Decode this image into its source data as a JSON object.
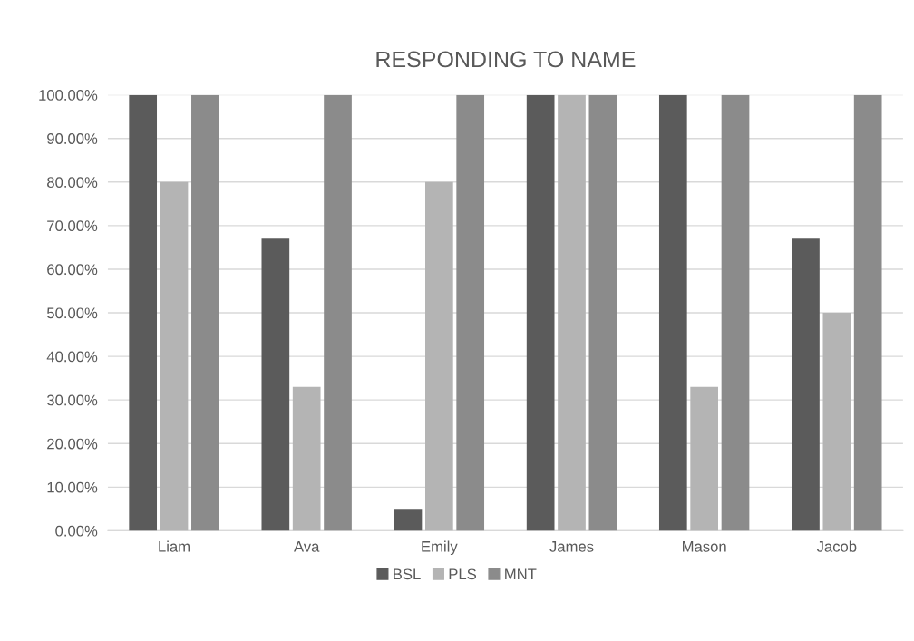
{
  "chart_data": {
    "type": "bar",
    "title": "RESPONDING TO NAME",
    "categories": [
      "Liam",
      "Ava",
      "Emily",
      "James",
      "Mason",
      "Jacob"
    ],
    "series": [
      {
        "name": "BSL",
        "color": "#5b5b5b",
        "values": [
          100,
          67,
          5,
          100,
          100,
          67
        ]
      },
      {
        "name": "PLS",
        "color": "#b4b4b4",
        "values": [
          80,
          33,
          80,
          100,
          33,
          50
        ]
      },
      {
        "name": "MNT",
        "color": "#8b8b8b",
        "values": [
          100,
          100,
          100,
          100,
          100,
          100
        ]
      }
    ],
    "ylim": [
      0,
      100
    ],
    "yticks": [
      {
        "value": 0,
        "label": "0.00%"
      },
      {
        "value": 10,
        "label": "10.00%"
      },
      {
        "value": 20,
        "label": "20.00%"
      },
      {
        "value": 30,
        "label": "30.00%"
      },
      {
        "value": 40,
        "label": "40.00%"
      },
      {
        "value": 50,
        "label": "50.00%"
      },
      {
        "value": 60,
        "label": "60.00%"
      },
      {
        "value": 70,
        "label": "70.00%"
      },
      {
        "value": 80,
        "label": "80.00%"
      },
      {
        "value": 90,
        "label": "90.00%"
      },
      {
        "value": 100,
        "label": "100.00%"
      }
    ],
    "grid": "y",
    "legend": "bottom"
  }
}
